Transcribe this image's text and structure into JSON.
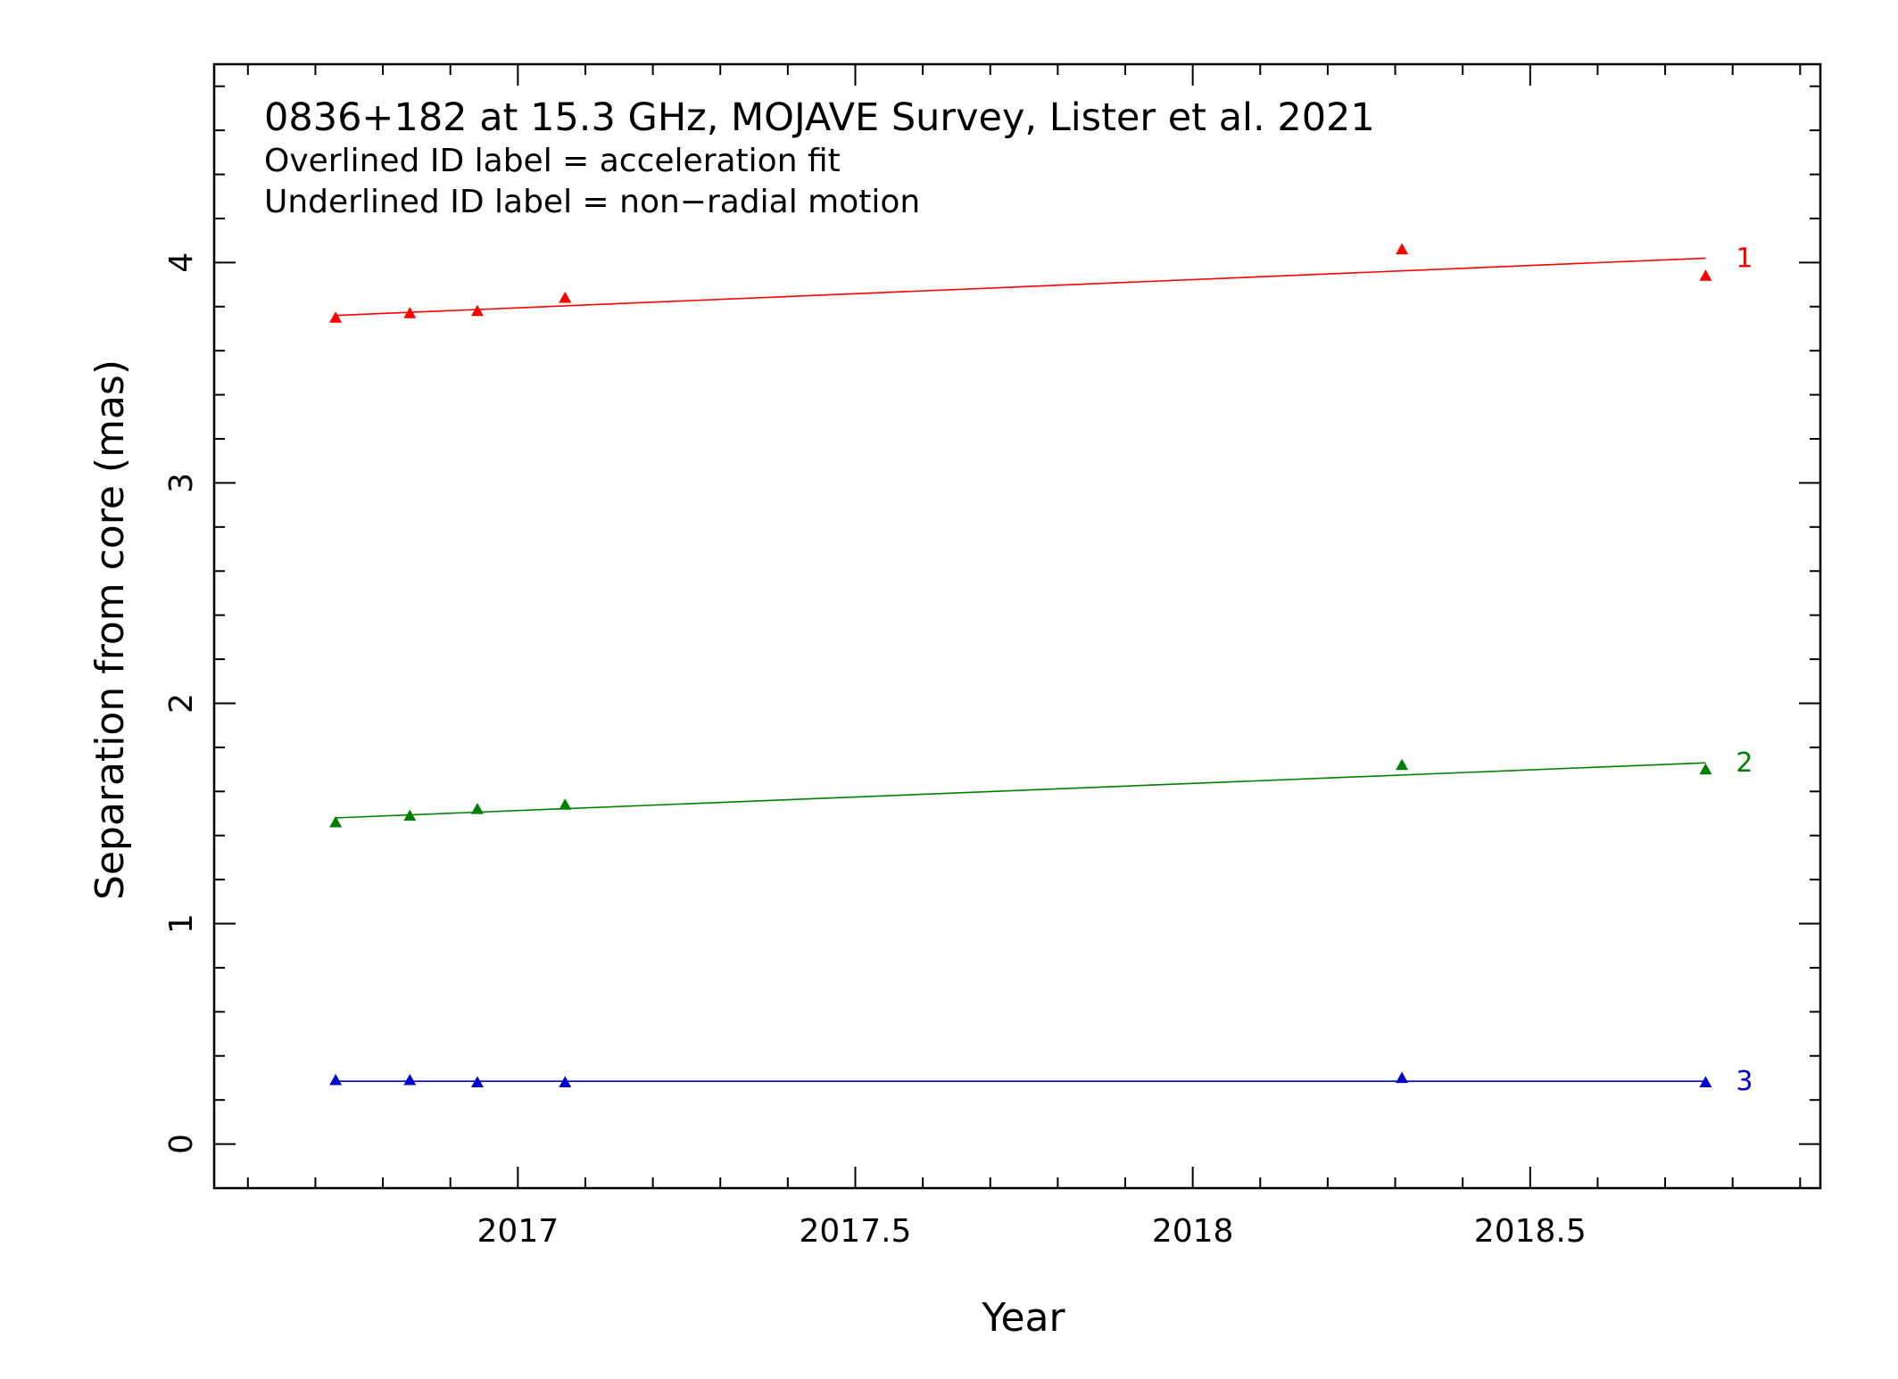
{
  "chart_data": {
    "type": "scatter",
    "title_lines": [
      "0836+182 at 15.3 GHz, MOJAVE Survey, Lister et al. 2021",
      "Overlined ID label = acceleration fit",
      "Underlined ID label = non−radial motion"
    ],
    "xlabel": "Year",
    "ylabel": "Separation from core (mas)",
    "xlim": [
      2016.55,
      2018.93
    ],
    "ylim": [
      -0.2,
      4.9
    ],
    "x_ticks": [
      2017,
      2017.5,
      2018,
      2018.5
    ],
    "x_tick_labels": [
      "2017",
      "2017.5",
      "2018",
      "2018.5"
    ],
    "y_ticks": [
      0,
      1,
      2,
      3,
      4
    ],
    "y_tick_labels": [
      "0",
      "1",
      "2",
      "3",
      "4"
    ],
    "grid": false,
    "series": [
      {
        "name": "1",
        "color": "#ff0000",
        "x": [
          2016.73,
          2016.84,
          2016.94,
          2017.07,
          2018.31,
          2018.76
        ],
        "y": [
          3.75,
          3.77,
          3.78,
          3.84,
          4.06,
          3.94
        ],
        "fit": [
          [
            2016.73,
            3.76
          ],
          [
            2018.76,
            4.02
          ]
        ]
      },
      {
        "name": "2",
        "color": "#008000",
        "x": [
          2016.73,
          2016.84,
          2016.94,
          2017.07,
          2018.31,
          2018.76
        ],
        "y": [
          1.46,
          1.49,
          1.52,
          1.54,
          1.72,
          1.7
        ],
        "fit": [
          [
            2016.73,
            1.48
          ],
          [
            2018.76,
            1.73
          ]
        ]
      },
      {
        "name": "3",
        "color": "#0000cc",
        "x": [
          2016.73,
          2016.84,
          2016.94,
          2017.07,
          2018.31,
          2018.76
        ],
        "y": [
          0.29,
          0.29,
          0.28,
          0.28,
          0.3,
          0.28
        ],
        "fit": [
          [
            2016.73,
            0.285
          ],
          [
            2018.76,
            0.285
          ]
        ]
      }
    ]
  }
}
